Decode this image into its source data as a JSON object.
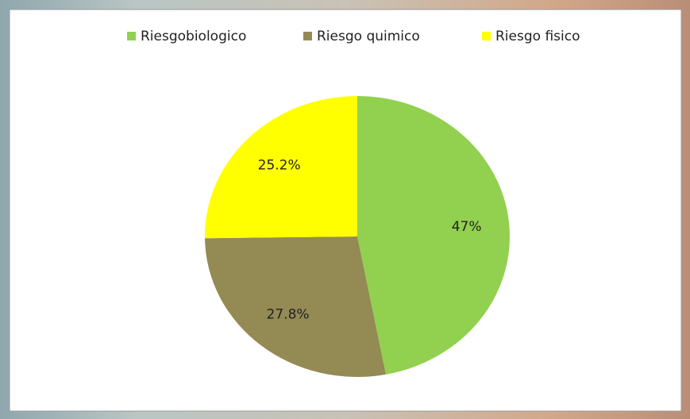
{
  "chart_data": {
    "type": "pie",
    "categories": [
      "Riesgobiologico",
      "Riesgo quimico",
      "Riesgo fisico"
    ],
    "values": [
      47,
      27.8,
      25.2
    ],
    "value_labels": [
      "47%",
      "27.8%",
      "25.2%"
    ],
    "colors": [
      "#92d050",
      "#948a54",
      "#ffff00"
    ],
    "legend": "top"
  }
}
